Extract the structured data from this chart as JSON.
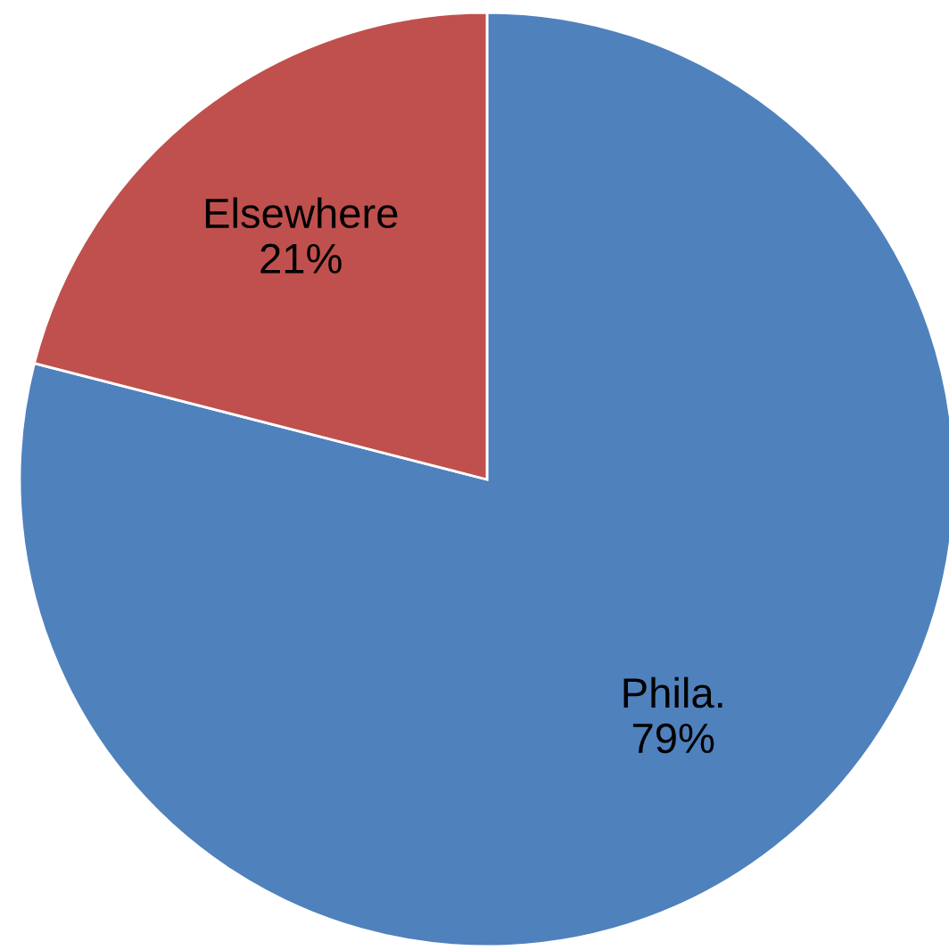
{
  "chart_data": {
    "type": "pie",
    "categories": [
      "Phila.",
      "Elsewhere"
    ],
    "values": [
      79,
      21
    ],
    "value_labels": [
      "79%",
      "21%"
    ],
    "colors": [
      "#4f81bd",
      "#c0504d"
    ]
  }
}
